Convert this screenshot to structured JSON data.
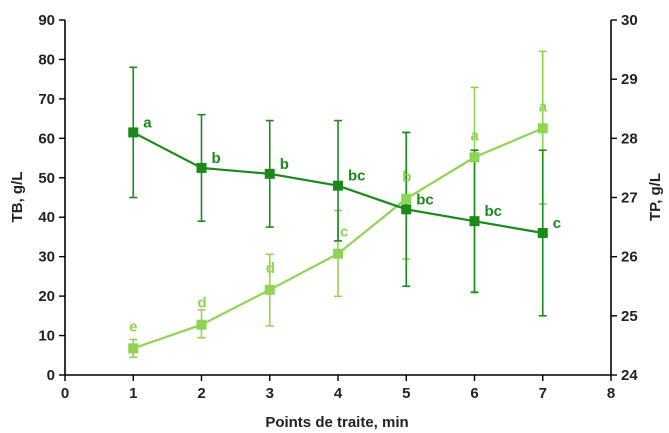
{
  "chart_data": {
    "type": "line",
    "xlabel": "Points de traite, min",
    "ylabel_left": "TB, g/L",
    "ylabel_right": "TP, g/L",
    "xlim": [
      0,
      8
    ],
    "xticks": [
      0,
      1,
      2,
      3,
      4,
      5,
      6,
      7,
      8
    ],
    "ylim_left": [
      0,
      90
    ],
    "yticks_left": [
      0,
      10,
      20,
      30,
      40,
      50,
      60,
      70,
      80,
      90
    ],
    "ylim_right": [
      24,
      30
    ],
    "yticks_right": [
      24,
      25,
      26,
      27,
      28,
      29,
      30
    ],
    "grid": false,
    "legend": "none",
    "series": [
      {
        "axis": "left",
        "color": "#1a8a1a",
        "x": [
          1,
          2,
          3,
          4,
          5,
          6,
          7
        ],
        "y": [
          61.5,
          52.5,
          51,
          48,
          42,
          39,
          36
        ],
        "err_low": [
          45,
          39,
          37.5,
          34,
          22.5,
          21,
          15
        ],
        "err_high": [
          78,
          66,
          64.5,
          64.5,
          61.5,
          57,
          57
        ],
        "labels": [
          "a",
          "b",
          "b",
          "bc",
          "bc",
          "bc",
          "c"
        ]
      },
      {
        "axis": "right",
        "color": "#8fd452",
        "x": [
          1,
          2,
          3,
          4,
          5,
          6,
          7
        ],
        "y": [
          24.45,
          24.85,
          25.44,
          26.05,
          26.98,
          27.68,
          28.17
        ],
        "err_low": [
          24.3,
          24.63,
          24.83,
          25.33,
          25.96,
          25.39,
          26.89
        ],
        "err_high": [
          24.6,
          25.1,
          26.04,
          26.78,
          28.1,
          28.86,
          29.47
        ],
        "labels": [
          "e",
          "d",
          "d",
          "c",
          "b",
          "a",
          "a"
        ]
      }
    ]
  }
}
